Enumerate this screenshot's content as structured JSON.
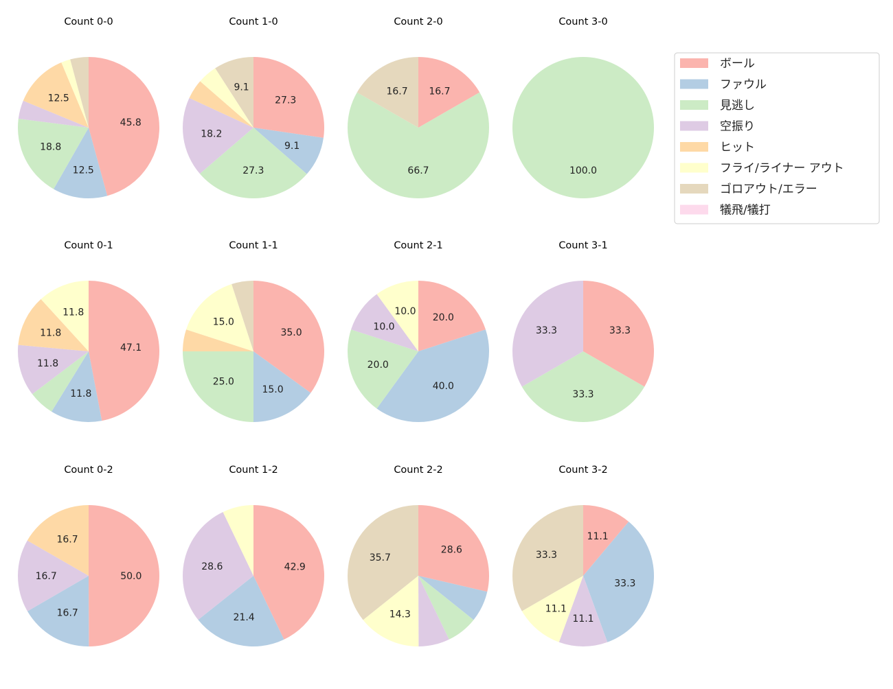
{
  "chart_data": {
    "type": "pie",
    "start_angle_deg": 90,
    "direction": "clockwise",
    "label_min_percent": 8,
    "legend": {
      "placement": "upper-right",
      "entries": [
        "ボール",
        "ファウル",
        "見逃し",
        "空振り",
        "ヒット",
        "フライ/ライナー アウト",
        "ゴロアウト/エラー",
        "犠飛/犠打"
      ],
      "colors": [
        "#fbb4ae",
        "#b3cde3",
        "#ccebc5",
        "#decbe4",
        "#fed9a6",
        "#ffffcc",
        "#e5d8bd",
        "#fddaec"
      ]
    },
    "charts": [
      {
        "title": "Count 0-0",
        "values": [
          45.8,
          12.5,
          18.8,
          4.2,
          12.5,
          2.1,
          4.2,
          0
        ]
      },
      {
        "title": "Count 1-0",
        "values": [
          27.3,
          9.1,
          27.3,
          18.2,
          4.5,
          4.5,
          9.1,
          0
        ]
      },
      {
        "title": "Count 2-0",
        "values": [
          16.7,
          0,
          66.7,
          0,
          0,
          0,
          16.7,
          0
        ]
      },
      {
        "title": "Count 3-0",
        "values": [
          0,
          0,
          100.0,
          0,
          0,
          0,
          0,
          0
        ]
      },
      {
        "title": "Count 0-1",
        "values": [
          47.1,
          11.8,
          5.9,
          11.8,
          11.8,
          11.8,
          0,
          0
        ]
      },
      {
        "title": "Count 1-1",
        "values": [
          35.0,
          15.0,
          25.0,
          0,
          5.0,
          15.0,
          5.0,
          0
        ]
      },
      {
        "title": "Count 2-1",
        "values": [
          20.0,
          40.0,
          20.0,
          10.0,
          0,
          10.0,
          0,
          0
        ]
      },
      {
        "title": "Count 3-1",
        "values": [
          33.3,
          0,
          33.3,
          33.3,
          0,
          0,
          0,
          0
        ]
      },
      {
        "title": "Count 0-2",
        "values": [
          50.0,
          16.7,
          0,
          16.7,
          16.7,
          0,
          0,
          0
        ]
      },
      {
        "title": "Count 1-2",
        "values": [
          42.9,
          21.4,
          0,
          28.6,
          0,
          7.1,
          0,
          0
        ]
      },
      {
        "title": "Count 2-2",
        "values": [
          28.6,
          7.1,
          7.1,
          7.1,
          0,
          14.3,
          35.7,
          0
        ]
      },
      {
        "title": "Count 3-2",
        "values": [
          11.1,
          33.3,
          0,
          11.1,
          0,
          11.1,
          33.3,
          0
        ]
      }
    ]
  }
}
